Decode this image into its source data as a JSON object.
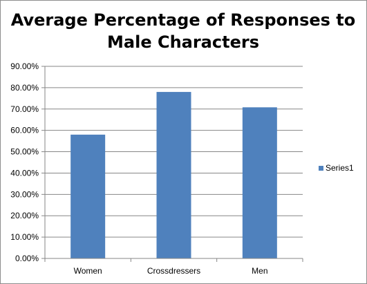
{
  "chart_data": {
    "type": "bar",
    "title_lines": [
      "Average Percentage of Responses to",
      "Male Characters"
    ],
    "categories": [
      "Women",
      "Crossdressers",
      "Men"
    ],
    "series": [
      {
        "name": "Series1",
        "values": [
          58.0,
          78.0,
          70.8
        ],
        "color": "#4f81bd"
      }
    ],
    "y_ticks": [
      "0.00%",
      "10.00%",
      "20.00%",
      "30.00%",
      "40.00%",
      "50.00%",
      "60.00%",
      "70.00%",
      "80.00%",
      "90.00%"
    ],
    "ylim": [
      0,
      90
    ],
    "y_step": 10,
    "grid": true,
    "legend_position": "right",
    "axis_color": "#868686",
    "grid_color": "#868686"
  }
}
